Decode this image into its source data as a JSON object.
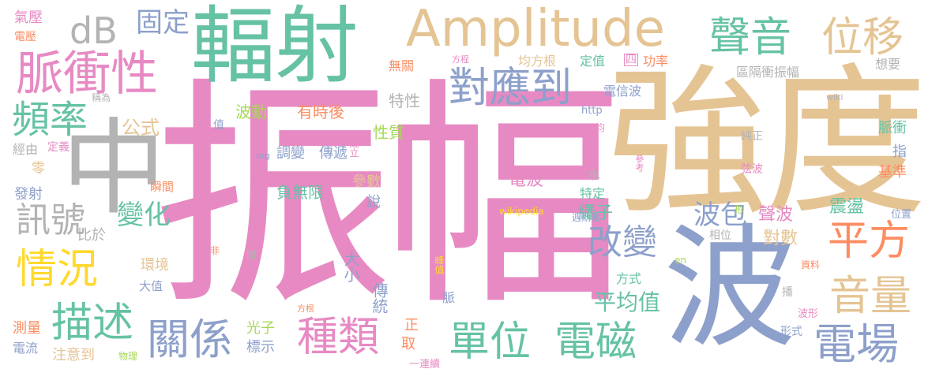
{
  "palette": {
    "pink": "#e78ac3",
    "tan": "#e5c494",
    "blue": "#8da0cb",
    "green": "#66c2a5",
    "orange": "#fc8d62",
    "lime": "#a6d854",
    "yellow": "#ffd92f",
    "gray": "#b3b3b3"
  },
  "words": [
    {
      "text": "振幅",
      "color": "pink"
    },
    {
      "text": "強度",
      "color": "tan"
    },
    {
      "text": "波",
      "color": "blue"
    },
    {
      "text": "中",
      "color": "gray"
    },
    {
      "text": "輻射",
      "color": "green"
    },
    {
      "text": "Amplitude",
      "color": "tan"
    },
    {
      "text": "脈衝性",
      "color": "pink"
    },
    {
      "text": "聲音",
      "color": "green"
    },
    {
      "text": "位移",
      "color": "tan"
    },
    {
      "text": "對應到",
      "color": "blue"
    },
    {
      "text": "dB",
      "color": "gray"
    },
    {
      "text": "固定",
      "color": "blue"
    },
    {
      "text": "頻率",
      "color": "green"
    },
    {
      "text": "平方",
      "color": "orange"
    },
    {
      "text": "音量",
      "color": "tan"
    },
    {
      "text": "電場",
      "color": "blue"
    },
    {
      "text": "單位",
      "color": "green"
    },
    {
      "text": "電磁",
      "color": "green"
    },
    {
      "text": "種類",
      "color": "pink"
    },
    {
      "text": "關係",
      "color": "blue"
    },
    {
      "text": "描述",
      "color": "green"
    },
    {
      "text": "情況",
      "color": "yellow"
    },
    {
      "text": "訊號",
      "color": "gray"
    },
    {
      "text": "改變",
      "color": "blue"
    },
    {
      "text": "波包",
      "color": "blue"
    },
    {
      "text": "變化",
      "color": "green"
    },
    {
      "text": "公式",
      "color": "tan"
    },
    {
      "text": "平均值",
      "color": "green"
    },
    {
      "text": "電波",
      "color": "pink"
    },
    {
      "text": "聲波",
      "color": "pink"
    },
    {
      "text": "震盪",
      "color": "green"
    },
    {
      "text": "對數",
      "color": "tan"
    },
    {
      "text": "繩子",
      "color": "green"
    },
    {
      "text": "波動",
      "color": "lime"
    },
    {
      "text": "有時後",
      "color": "orange"
    },
    {
      "text": "特性",
      "color": "gray"
    },
    {
      "text": "性質",
      "color": "lime"
    },
    {
      "text": "調變",
      "color": "blue"
    },
    {
      "text": "傳遞",
      "color": "blue"
    },
    {
      "text": "負無限",
      "color": "green"
    },
    {
      "text": "大小",
      "color": "blue"
    },
    {
      "text": "傳統",
      "color": "blue"
    },
    {
      "text": "光子",
      "color": "lime"
    },
    {
      "text": "標示",
      "color": "blue"
    },
    {
      "text": "注意到",
      "color": "tan"
    },
    {
      "text": "電信波",
      "color": "blue"
    },
    {
      "text": "區隔衝振幅",
      "color": "gray"
    },
    {
      "text": "想要",
      "color": "gray"
    },
    {
      "text": "脈衝",
      "color": "green"
    },
    {
      "text": "基準",
      "color": "orange"
    },
    {
      "text": "指",
      "color": "blue"
    },
    {
      "text": "純正",
      "color": "gray"
    },
    {
      "text": "弦波",
      "color": "pink"
    },
    {
      "text": "位置",
      "color": "blue"
    },
    {
      "text": "資料",
      "color": "orange"
    },
    {
      "text": "波形",
      "color": "pink"
    },
    {
      "text": "形式",
      "color": "blue"
    },
    {
      "text": "播",
      "color": "gray"
    },
    {
      "text": "方式",
      "color": "green"
    },
    {
      "text": "相位",
      "color": "gray"
    },
    {
      "text": "特定",
      "color": "green"
    },
    {
      "text": "水",
      "color": "gray"
    },
    {
      "text": "週期波",
      "color": "blue"
    },
    {
      "text": "參數",
      "color": "tan"
    },
    {
      "text": "說",
      "color": "blue"
    },
    {
      "text": "瞬間",
      "color": "orange"
    },
    {
      "text": "環境",
      "color": "tan"
    },
    {
      "text": "大值",
      "color": "blue"
    },
    {
      "text": "比於",
      "color": "gray"
    },
    {
      "text": "發射",
      "color": "blue"
    },
    {
      "text": "零",
      "color": "tan"
    },
    {
      "text": "經由",
      "color": "gray"
    },
    {
      "text": "定義",
      "color": "pink"
    },
    {
      "text": "稱為",
      "color": "gray"
    },
    {
      "text": "氣壓",
      "color": "pink"
    },
    {
      "text": "電壓",
      "color": "orange"
    },
    {
      "text": "無關",
      "color": "orange"
    },
    {
      "text": "方程",
      "color": "pink"
    },
    {
      "text": "均方根",
      "color": "tan"
    },
    {
      "text": "定值",
      "color": "green"
    },
    {
      "text": "四",
      "color": "pink"
    },
    {
      "text": "功率",
      "color": "orange"
    },
    {
      "text": "測量",
      "color": "orange"
    },
    {
      "text": "電流",
      "color": "blue"
    },
    {
      "text": "物理",
      "color": "lime"
    },
    {
      "text": "一連續",
      "color": "pink"
    },
    {
      "text": "正",
      "color": "orange"
    },
    {
      "text": "取",
      "color": "orange"
    },
    {
      "text": "脈",
      "color": "blue"
    },
    {
      "text": "峰值",
      "color": "yellow"
    },
    {
      "text": "方根",
      "color": "orange"
    },
    {
      "text": "成立",
      "color": "pink"
    },
    {
      "text": "峰",
      "color": "pink"
    },
    {
      "text": "值",
      "color": "blue"
    },
    {
      "text": "均",
      "color": "pink"
    },
    {
      "text": "參考",
      "color": "pink"
    },
    {
      "text": "形",
      "color": "lime"
    },
    {
      "text": "非",
      "color": "orange"
    },
    {
      "text": "間",
      "color": "gray"
    },
    {
      "text": "wiki",
      "color": "gray"
    },
    {
      "text": "http",
      "color": "blue"
    },
    {
      "text": "org",
      "color": "blue"
    },
    {
      "text": "wikipedia",
      "color": "yellow"
    },
    {
      "text": "en",
      "color": "lime"
    }
  ]
}
